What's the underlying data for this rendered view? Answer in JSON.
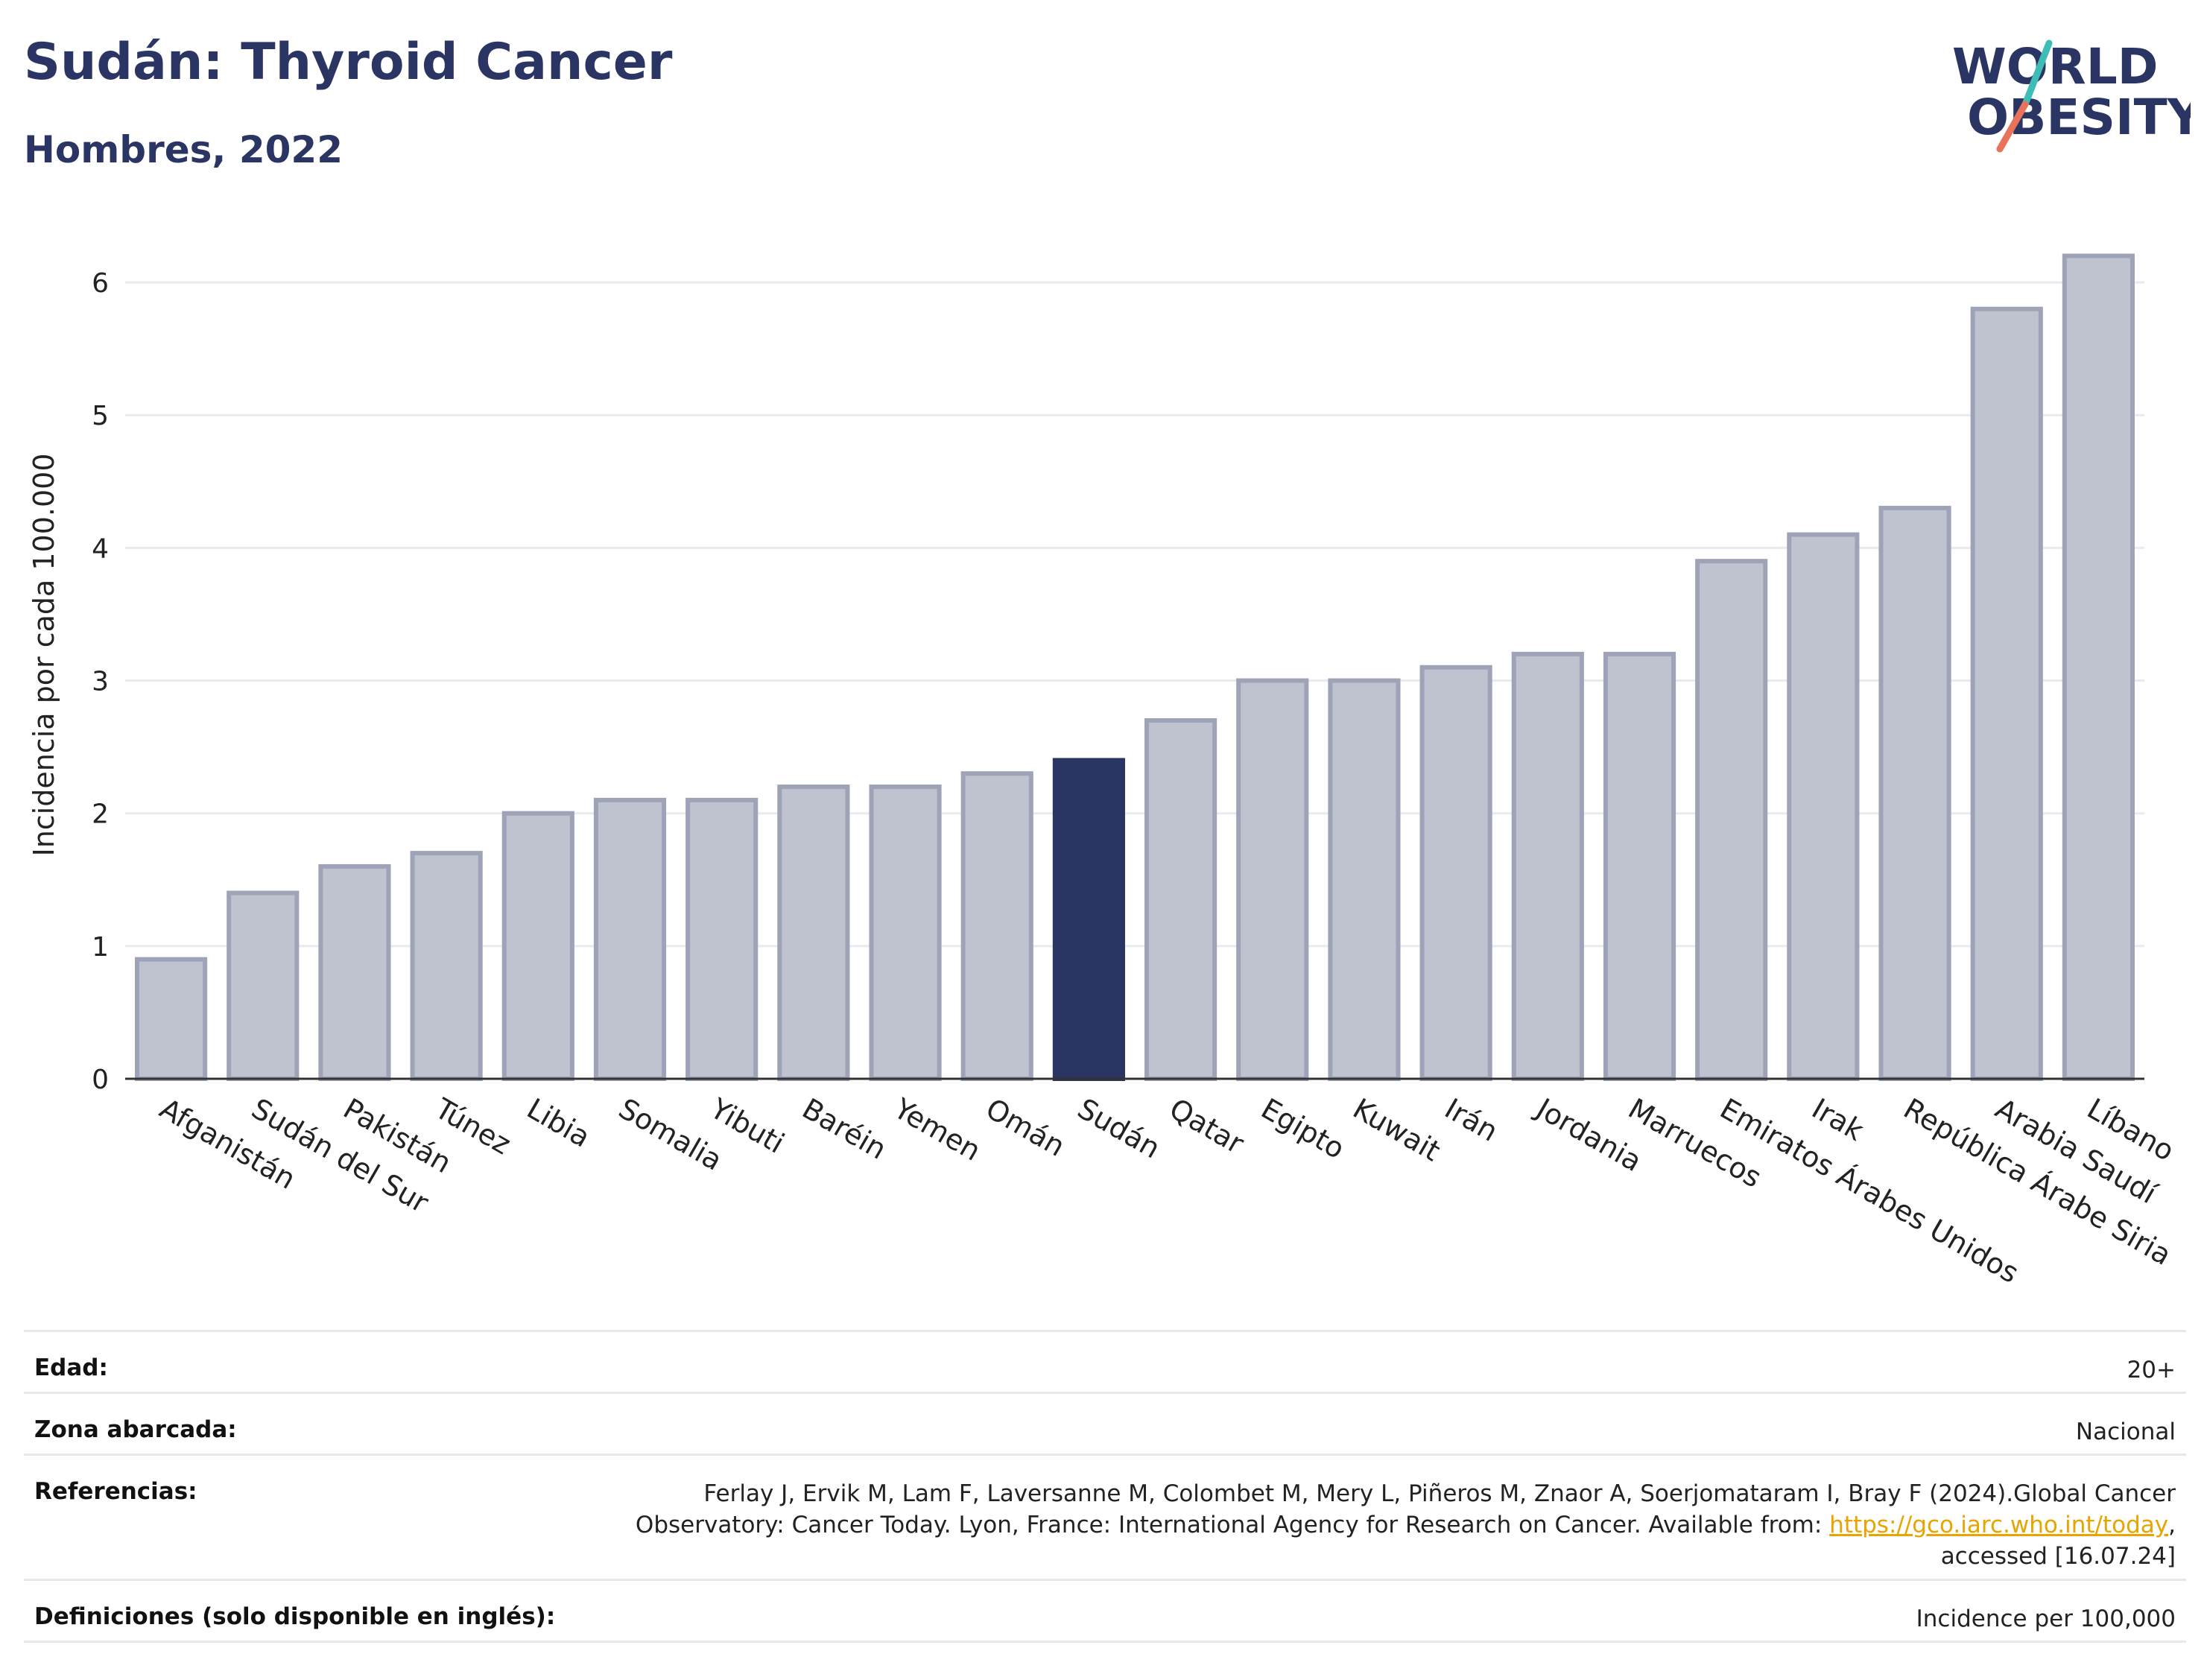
{
  "header": {
    "title": "Sudán: Thyroid Cancer",
    "subtitle": "Hombres, 2022"
  },
  "logo": {
    "line1": "WORLD",
    "line2": "OBESITY",
    "text_color": "#2b3563",
    "slash_colors": [
      "#3dbdb5",
      "#e8735a"
    ]
  },
  "colors": {
    "bar_default": "#bfc2cf",
    "bar_default_stroke": "#9ea3b8",
    "bar_highlight": "#2b3563",
    "grid": "#e9eaf0",
    "axis": "#333333",
    "link": "#e8a400"
  },
  "chart_data": {
    "type": "bar",
    "title": "",
    "xlabel": "",
    "ylabel": "Incidencia por cada 100.000",
    "ylim": [
      0,
      6.5
    ],
    "yticks": [
      0,
      1,
      2,
      3,
      4,
      5,
      6
    ],
    "grid": true,
    "highlight": "Sudán",
    "categories": [
      "Afganistán",
      "Sudán del Sur",
      "Pakistán",
      "Túnez",
      "Libia",
      "Somalia",
      "Yibuti",
      "Baréin",
      "Yemen",
      "Omán",
      "Sudán",
      "Qatar",
      "Egipto",
      "Kuwait",
      "Irán",
      "Jordania",
      "Marruecos",
      "Emiratos Árabes Unidos",
      "Irak",
      "República Árabe Siria",
      "Arabia Saudí",
      "Líbano"
    ],
    "values": [
      0.9,
      1.4,
      1.6,
      1.7,
      2.0,
      2.1,
      2.1,
      2.2,
      2.2,
      2.3,
      2.4,
      2.7,
      3.0,
      3.0,
      3.1,
      3.2,
      3.2,
      3.9,
      4.1,
      4.3,
      5.8,
      6.2
    ]
  },
  "meta": {
    "edad_label": "Edad:",
    "edad_value": "20+",
    "zona_label": "Zona abarcada:",
    "zona_value": "Nacional",
    "ref_label": "Referencias:",
    "ref_line1": "Ferlay J, Ervik M, Lam F, Laversanne M, Colombet M, Mery L, Piñeros M, Znaor A, Soerjomataram I, Bray F (2024).Global Cancer",
    "ref_line2_pre": "Observatory: Cancer Today. Lyon, France: International Agency for Research on Cancer. Available from: ",
    "ref_link": "https://gco.iarc.who.int/today",
    "ref_line2_post": ",",
    "ref_line3": "accessed [16.07.24]",
    "def_label": "Definiciones (solo disponible en inglés):",
    "def_value": "Incidence per 100,000"
  }
}
